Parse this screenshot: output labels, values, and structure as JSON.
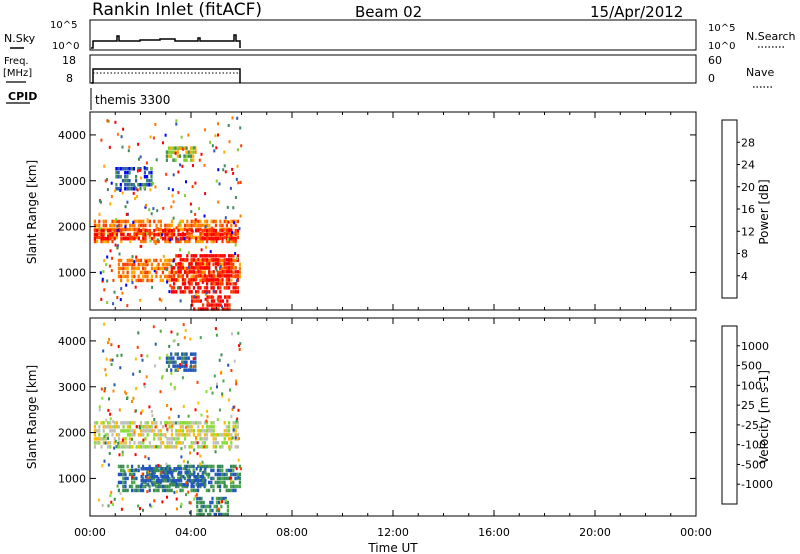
{
  "header": {
    "station": "Rankin Inlet (fitACF)",
    "beam": "Beam 02",
    "date": "15/Apr/2012"
  },
  "noise_panel": {
    "left_label": "N.Sky",
    "right_label": "N.Search",
    "left_ticks": [
      "10^5",
      "10^0"
    ],
    "right_ticks": [
      "10^5",
      "10^0"
    ]
  },
  "freq_panel": {
    "left_label_line1": "Freq.",
    "left_label_line2": "[MHz]",
    "right_label": "Nave",
    "left_ticks": [
      "18",
      "8"
    ],
    "right_ticks": [
      "60",
      "0"
    ]
  },
  "cpid_panel": {
    "label": "CPID",
    "text": "themis 3300"
  },
  "colors": {
    "power_scale": [
      "#0000ff",
      "#2e59b5",
      "#3f8c5c",
      "#7fcf2f",
      "#ffaa00",
      "#ff7a00",
      "#ff3b00",
      "#ff0000"
    ],
    "velocity_scale": [
      "#2255bb",
      "#3a8a55",
      "#4aa84a",
      "#88dd33",
      "#c0c0b8",
      "#ffbb00",
      "#ff8800",
      "#ff4400",
      "#ff0000"
    ]
  },
  "chart_data": [
    {
      "type": "heatmap",
      "id": "power",
      "ylabel": "Slant Range [km]",
      "ylim": [
        180,
        4500
      ],
      "yticks": [
        "1000",
        "2000",
        "3000",
        "4000"
      ],
      "xlim_hours": [
        0,
        24
      ],
      "data_end_hour": 5.95,
      "colorbar_label": "Power [dB]",
      "colorbar_ticks": [
        "4",
        "8",
        "12",
        "16",
        "20",
        "24",
        "28"
      ],
      "bands": [
        {
          "t0": 0.15,
          "t1": 5.9,
          "r0": 1700,
          "r1": 2150,
          "level": 5
        },
        {
          "t0": 0.15,
          "t1": 5.9,
          "r0": 1750,
          "r1": 1950,
          "level": 7
        },
        {
          "t0": 1.1,
          "t1": 5.9,
          "r0": 800,
          "r1": 1300,
          "level": 5
        },
        {
          "t0": 3.2,
          "t1": 5.9,
          "r0": 600,
          "r1": 1400,
          "level": 7
        },
        {
          "t0": 1.0,
          "t1": 2.4,
          "r0": 2850,
          "r1": 3300,
          "level": 1
        },
        {
          "t0": 3.0,
          "t1": 4.2,
          "r0": 3450,
          "r1": 3750,
          "level": 3
        },
        {
          "t0": 4.0,
          "t1": 5.5,
          "r0": 200,
          "r1": 500,
          "level": 7
        }
      ]
    },
    {
      "type": "heatmap",
      "id": "velocity",
      "ylabel": "Slant Range [km]",
      "xlabel": "Time UT",
      "ylim": [
        180,
        4500
      ],
      "yticks": [
        "1000",
        "2000",
        "3000",
        "4000"
      ],
      "xticks": [
        "00:00",
        "04:00",
        "08:00",
        "12:00",
        "16:00",
        "20:00",
        "00:00"
      ],
      "xlim_hours": [
        0,
        24
      ],
      "data_end_hour": 5.95,
      "colorbar_label": "Velocity [m s-1]",
      "colorbar_ticks": [
        "1000",
        "500",
        "100",
        "25",
        "-25",
        "-100",
        "-500",
        "-1000"
      ],
      "bands": [
        {
          "t0": 0.15,
          "t1": 5.9,
          "r0": 1650,
          "r1": 2250,
          "level": 4
        },
        {
          "t0": 1.1,
          "t1": 5.9,
          "r0": 700,
          "r1": 1300,
          "level": 1
        },
        {
          "t0": 2.0,
          "t1": 4.6,
          "r0": 850,
          "r1": 1250,
          "level": 0
        },
        {
          "t0": 3.0,
          "t1": 4.2,
          "r0": 3400,
          "r1": 3750,
          "level": 0
        },
        {
          "t0": 4.2,
          "t1": 5.5,
          "r0": 200,
          "r1": 600,
          "level": 1
        }
      ]
    }
  ]
}
